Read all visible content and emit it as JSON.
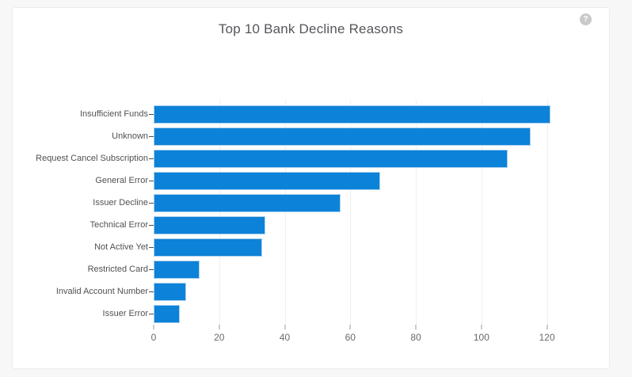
{
  "card": {
    "title": "Top 10 Bank Decline Reasons",
    "help_icon_glyph": "?"
  },
  "chart_data": {
    "type": "bar",
    "orientation": "horizontal",
    "title": "Top 10 Bank Decline Reasons",
    "categories": [
      "Insufficient Funds",
      "Unknown",
      "Request Cancel Subscription",
      "General Error",
      "Issuer Decline",
      "Technical Error",
      "Not Active Yet",
      "Restricted Card",
      "Invalid Account Number",
      "Issuer Error"
    ],
    "values": [
      121,
      115,
      108,
      69,
      57,
      34,
      33,
      14,
      10,
      8
    ],
    "xlabel": "",
    "ylabel": "",
    "xlim": [
      0,
      137
    ],
    "xticks": [
      0,
      20,
      40,
      60,
      80,
      100,
      120
    ],
    "grid": "vertical-light",
    "legend": "none"
  },
  "colors": {
    "page_background": "#f7f7f8",
    "card_background": "#ffffff",
    "title": "#55565a",
    "bar_fill": "#0c82d8",
    "bar_border": "#a9cfef",
    "grid_line": "#efefef",
    "axis_tick": "#9a9a9a",
    "tick_label": "#666a6d",
    "category_label": "#4f5153",
    "help_icon": "#c9c9c9"
  }
}
